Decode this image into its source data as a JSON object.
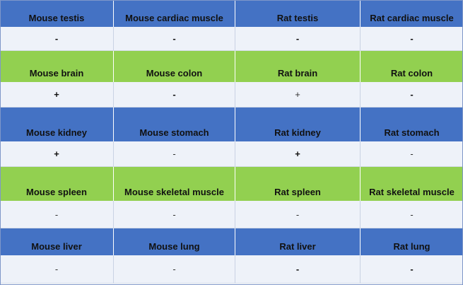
{
  "colors": {
    "blue_header": "#4472c4",
    "green_header": "#92d050",
    "value_row": "#eef2f9"
  },
  "rows": [
    {
      "style": "blue",
      "labels": [
        "Mouse testis",
        "Mouse cardiac muscle",
        "Rat testis",
        "Rat cardiac muscle"
      ],
      "values": [
        "-",
        "-",
        "-",
        "-"
      ]
    },
    {
      "style": "green",
      "labels": [
        "Mouse brain",
        "Mouse colon",
        "Rat brain",
        "Rat colon"
      ],
      "values": [
        "+",
        "-",
        "+",
        "-"
      ]
    },
    {
      "style": "blue",
      "labels": [
        "Mouse kidney",
        "Mouse stomach",
        "Rat kidney",
        "Rat stomach"
      ],
      "values": [
        "+",
        "-",
        "+",
        "-"
      ]
    },
    {
      "style": "green",
      "labels": [
        "Mouse spleen",
        "Mouse skeletal muscle",
        "Rat spleen",
        "Rat skeletal muscle"
      ],
      "values": [
        "-",
        "-",
        "-",
        "-"
      ]
    },
    {
      "style": "blue",
      "labels": [
        "Mouse liver",
        "Mouse lung",
        "Rat liver",
        "Rat lung"
      ],
      "values": [
        "-",
        "-",
        "-",
        "-"
      ]
    }
  ]
}
